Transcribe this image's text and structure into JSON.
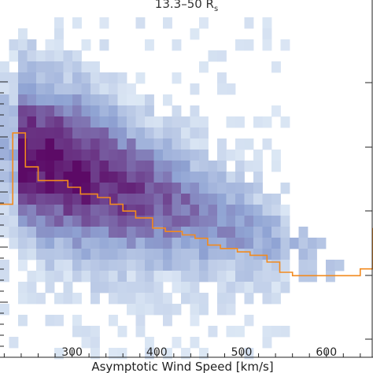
{
  "chart_data": {
    "type": "heatmap",
    "title": "13.3–50 R",
    "title_subscript": "s",
    "xlabel": "Asymptotic Wind Speed [km/s]",
    "ylabel": "",
    "x_ticks": [
      300,
      400,
      500,
      600
    ],
    "xlim": [
      215,
      655
    ],
    "grid": false,
    "colors": {
      "density_low": "#e8f2fa",
      "density_mid": "#8fa3d3",
      "density_high": "#5c0a66",
      "median_line": "#f28a1e",
      "axis": "#222222"
    },
    "median_line": {
      "x": [
        215,
        230,
        245,
        260,
        280,
        295,
        310,
        330,
        345,
        360,
        375,
        395,
        410,
        430,
        445,
        460,
        475,
        495,
        510,
        530,
        545,
        560,
        580,
        595,
        615,
        640,
        655
      ],
      "level": [
        0.45,
        0.66,
        0.56,
        0.52,
        0.52,
        0.5,
        0.48,
        0.47,
        0.45,
        0.43,
        0.41,
        0.38,
        0.37,
        0.36,
        0.35,
        0.33,
        0.32,
        0.31,
        0.3,
        0.28,
        0.25,
        0.24,
        0.24,
        0.24,
        0.24,
        0.26,
        0.38
      ]
    }
  }
}
